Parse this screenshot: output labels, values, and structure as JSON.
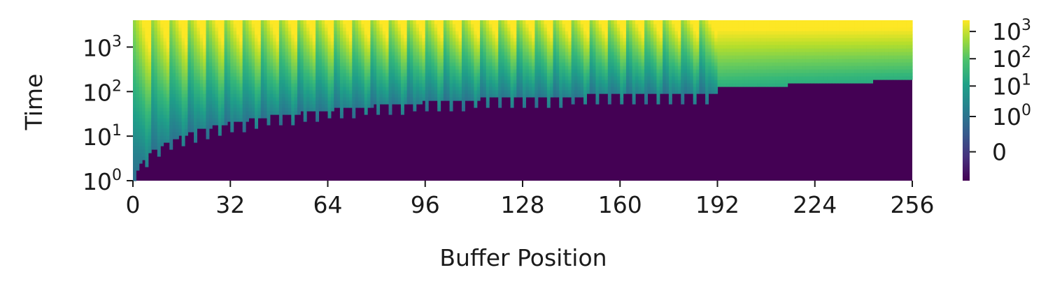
{
  "chart_data": {
    "type": "heatmap",
    "title": "",
    "xlabel": "Buffer Position",
    "ylabel": "Time",
    "x_ticks": [
      "0",
      "32",
      "64",
      "96",
      "128",
      "160",
      "192",
      "224",
      "256"
    ],
    "x_range": [
      0,
      256
    ],
    "y_scale": "log",
    "y_ticks": [
      {
        "base": "10",
        "exp": "0",
        "value": 1
      },
      {
        "base": "10",
        "exp": "1",
        "value": 10
      },
      {
        "base": "10",
        "exp": "2",
        "value": 100
      },
      {
        "base": "10",
        "exp": "3",
        "value": 1000
      }
    ],
    "y_range": [
      1,
      4000
    ],
    "colormap": "viridis",
    "colorbar": {
      "ticks": [
        {
          "base": "10",
          "exp": "3"
        },
        {
          "base": "10",
          "exp": "2"
        },
        {
          "base": "10",
          "exp": "1"
        },
        {
          "base": "10",
          "exp": "0"
        },
        {
          "base": "0",
          "exp": ""
        }
      ]
    },
    "grid": false,
    "legend": "none"
  }
}
